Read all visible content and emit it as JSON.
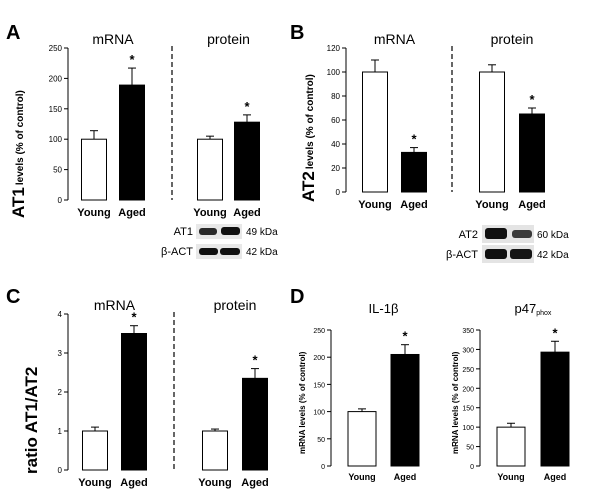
{
  "figure": {
    "panel_a": {
      "letter": "A",
      "ylabel_main": "AT1",
      "ylabel_sub": "levels (% of control)",
      "blot": [
        {
          "label": "AT1",
          "size": "49 kDa"
        },
        {
          "label": "β-ACT",
          "size": "42 kDa"
        }
      ]
    },
    "panel_b": {
      "letter": "B",
      "ylabel_main": "AT2",
      "ylabel_sub": "levels (% of control)",
      "blot": [
        {
          "label": "AT2",
          "size": "60 kDa"
        },
        {
          "label": "β-ACT",
          "size": "42 kDa"
        }
      ]
    },
    "panel_c": {
      "letter": "C",
      "ylabel": "ratio AT1/AT2"
    },
    "panel_d": {
      "letter": "D",
      "ylabel": "mRNA levels (% of control)"
    }
  },
  "chart_data": [
    {
      "type": "bar",
      "panel": "A",
      "title": "mRNA",
      "categories": [
        "Young",
        "Aged"
      ],
      "values": [
        100,
        189
      ],
      "errors": [
        14,
        28
      ],
      "significance": [
        "",
        "*"
      ],
      "fills": [
        "#ffffff",
        "#000000"
      ],
      "ylim": [
        0,
        250
      ],
      "yticks": [
        0,
        50,
        100,
        150,
        200,
        250
      ]
    },
    {
      "type": "bar",
      "panel": "A",
      "title": "protein",
      "categories": [
        "Young",
        "Aged"
      ],
      "values": [
        100,
        128
      ],
      "errors": [
        5,
        12
      ],
      "significance": [
        "",
        "*"
      ],
      "fills": [
        "#ffffff",
        "#000000"
      ],
      "ylim": [
        0,
        250
      ]
    },
    {
      "type": "bar",
      "panel": "B",
      "title": "mRNA",
      "categories": [
        "Young",
        "Aged"
      ],
      "values": [
        100,
        33
      ],
      "errors": [
        10,
        4
      ],
      "significance": [
        "",
        "*"
      ],
      "fills": [
        "#ffffff",
        "#000000"
      ],
      "ylim": [
        0,
        120
      ],
      "yticks": [
        0,
        20,
        40,
        60,
        80,
        100,
        120
      ]
    },
    {
      "type": "bar",
      "panel": "B",
      "title": "protein",
      "categories": [
        "Young",
        "Aged"
      ],
      "values": [
        100,
        65
      ],
      "errors": [
        6,
        5
      ],
      "significance": [
        "",
        "*"
      ],
      "fills": [
        "#ffffff",
        "#000000"
      ],
      "ylim": [
        0,
        120
      ]
    },
    {
      "type": "bar",
      "panel": "C",
      "title": "mRNA",
      "categories": [
        "Young",
        "Aged"
      ],
      "values": [
        1.0,
        3.5
      ],
      "errors": [
        0.1,
        0.2
      ],
      "significance": [
        "",
        "*"
      ],
      "fills": [
        "#ffffff",
        "#000000"
      ],
      "ylim": [
        0,
        4
      ],
      "yticks": [
        0,
        1,
        2,
        3,
        4
      ]
    },
    {
      "type": "bar",
      "panel": "C",
      "title": "protein",
      "categories": [
        "Young",
        "Aged"
      ],
      "values": [
        1.0,
        2.35
      ],
      "errors": [
        0.05,
        0.25
      ],
      "significance": [
        "",
        "*"
      ],
      "fills": [
        "#ffffff",
        "#000000"
      ],
      "ylim": [
        0,
        4
      ]
    },
    {
      "type": "bar",
      "panel": "D",
      "title": "IL-1β",
      "categories": [
        "Young",
        "Aged"
      ],
      "values": [
        100,
        205
      ],
      "errors": [
        5,
        18
      ],
      "significance": [
        "",
        "*"
      ],
      "fills": [
        "#ffffff",
        "#000000"
      ],
      "ylim": [
        0,
        250
      ],
      "yticks": [
        0,
        50,
        100,
        150,
        200,
        250
      ]
    },
    {
      "type": "bar",
      "panel": "D",
      "title": "p47",
      "title_sub": "phox",
      "categories": [
        "Young",
        "Aged"
      ],
      "values": [
        100,
        293
      ],
      "errors": [
        10,
        28
      ],
      "significance": [
        "",
        "*"
      ],
      "fills": [
        "#ffffff",
        "#000000"
      ],
      "ylim": [
        0,
        350
      ],
      "yticks": [
        0,
        50,
        100,
        150,
        200,
        250,
        300,
        350
      ]
    }
  ]
}
